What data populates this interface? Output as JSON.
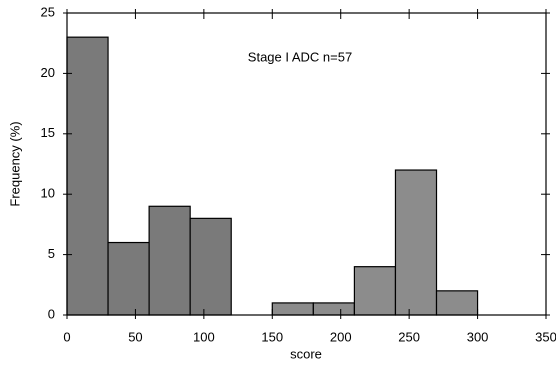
{
  "chart_data": {
    "type": "histogram",
    "annotation": "Stage I ADC n=57",
    "x_label": "score",
    "y_label": "Frequency (%)",
    "bins": [
      0,
      30,
      60,
      90,
      120,
      150,
      180,
      210,
      240,
      270,
      300
    ],
    "values": [
      23,
      6,
      9,
      8,
      0,
      1,
      1,
      4,
      12,
      2
    ],
    "colors": [
      "#7a7a7a",
      "#7a7a7a",
      "#7a7a7a",
      "#7a7a7a",
      "#7a7a7a",
      "#8c8c8c",
      "#8c8c8c",
      "#8c8c8c",
      "#8c8c8c",
      "#8c8c8c"
    ],
    "xlim": [
      0,
      350
    ],
    "xticks": [
      0,
      50,
      100,
      150,
      200,
      250,
      300,
      350
    ],
    "ylim": [
      0,
      25
    ],
    "yticks": [
      0,
      5,
      10,
      15,
      20,
      25
    ]
  }
}
